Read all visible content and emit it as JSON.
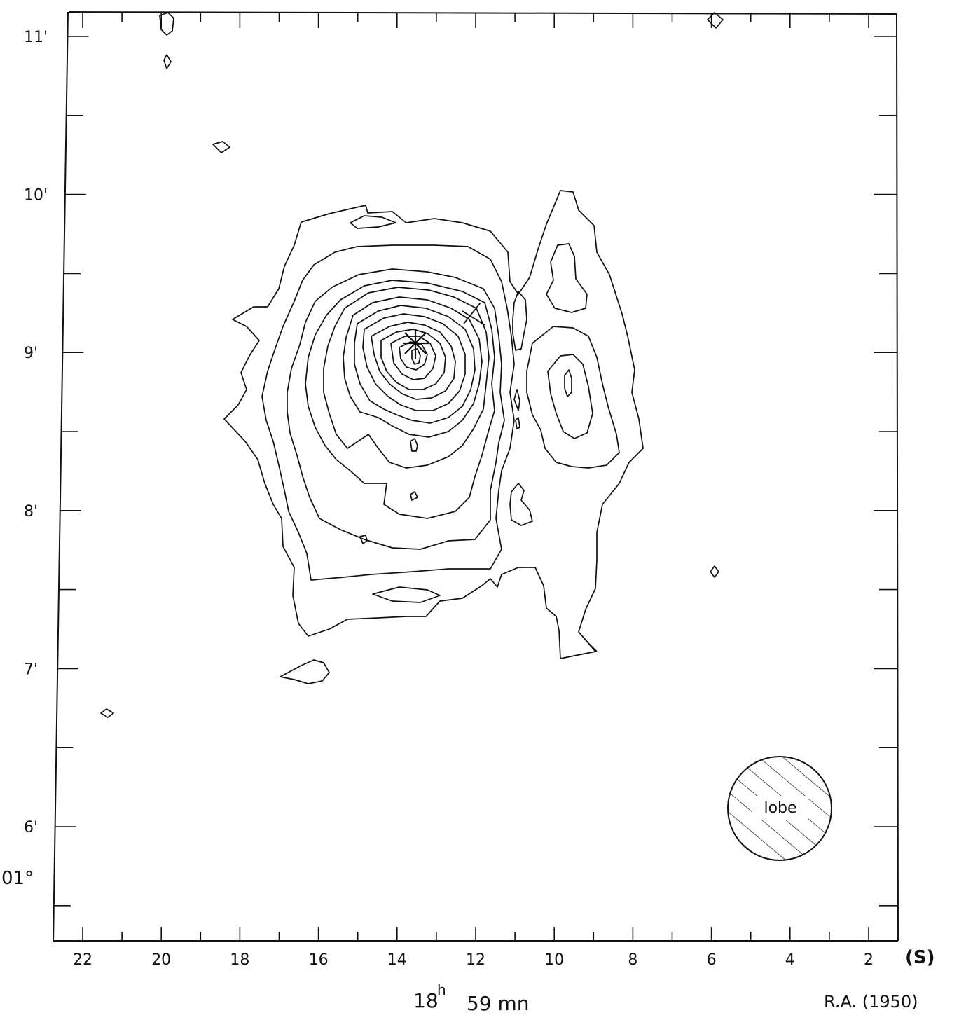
{
  "chart_data": {
    "type": "contour",
    "title": "",
    "x_axis": {
      "ticks": [
        22,
        20,
        18,
        16,
        14,
        12,
        10,
        8,
        6,
        4,
        2
      ],
      "tick_labels": [
        "22",
        "20",
        "18",
        "16",
        "14",
        "12",
        "10",
        "8",
        "6",
        "4",
        "2"
      ],
      "unit_label": "(S)",
      "caption": "18h 59 mn",
      "caption_parts": {
        "hours": "18",
        "hours_sup": "h",
        "minutes": "59 mn"
      },
      "system_label": "R.A. (1950)",
      "range": [
        22.8,
        1.6
      ],
      "direction": "decreasing"
    },
    "y_axis": {
      "ticks": [
        11,
        10,
        9,
        8,
        7,
        6
      ],
      "tick_labels": [
        "11'",
        "10'",
        "9'",
        "8'",
        "7'",
        "6'"
      ],
      "degree_label": "01°",
      "range": [
        5.2,
        11.2
      ]
    },
    "markers": {
      "peak_star": {
        "x": 13.9,
        "y": 9.05
      },
      "cross": {
        "x": 12.6,
        "y": 9.25
      }
    },
    "beam": {
      "label": "lobe",
      "x": 4.8,
      "y": 6.3
    }
  }
}
